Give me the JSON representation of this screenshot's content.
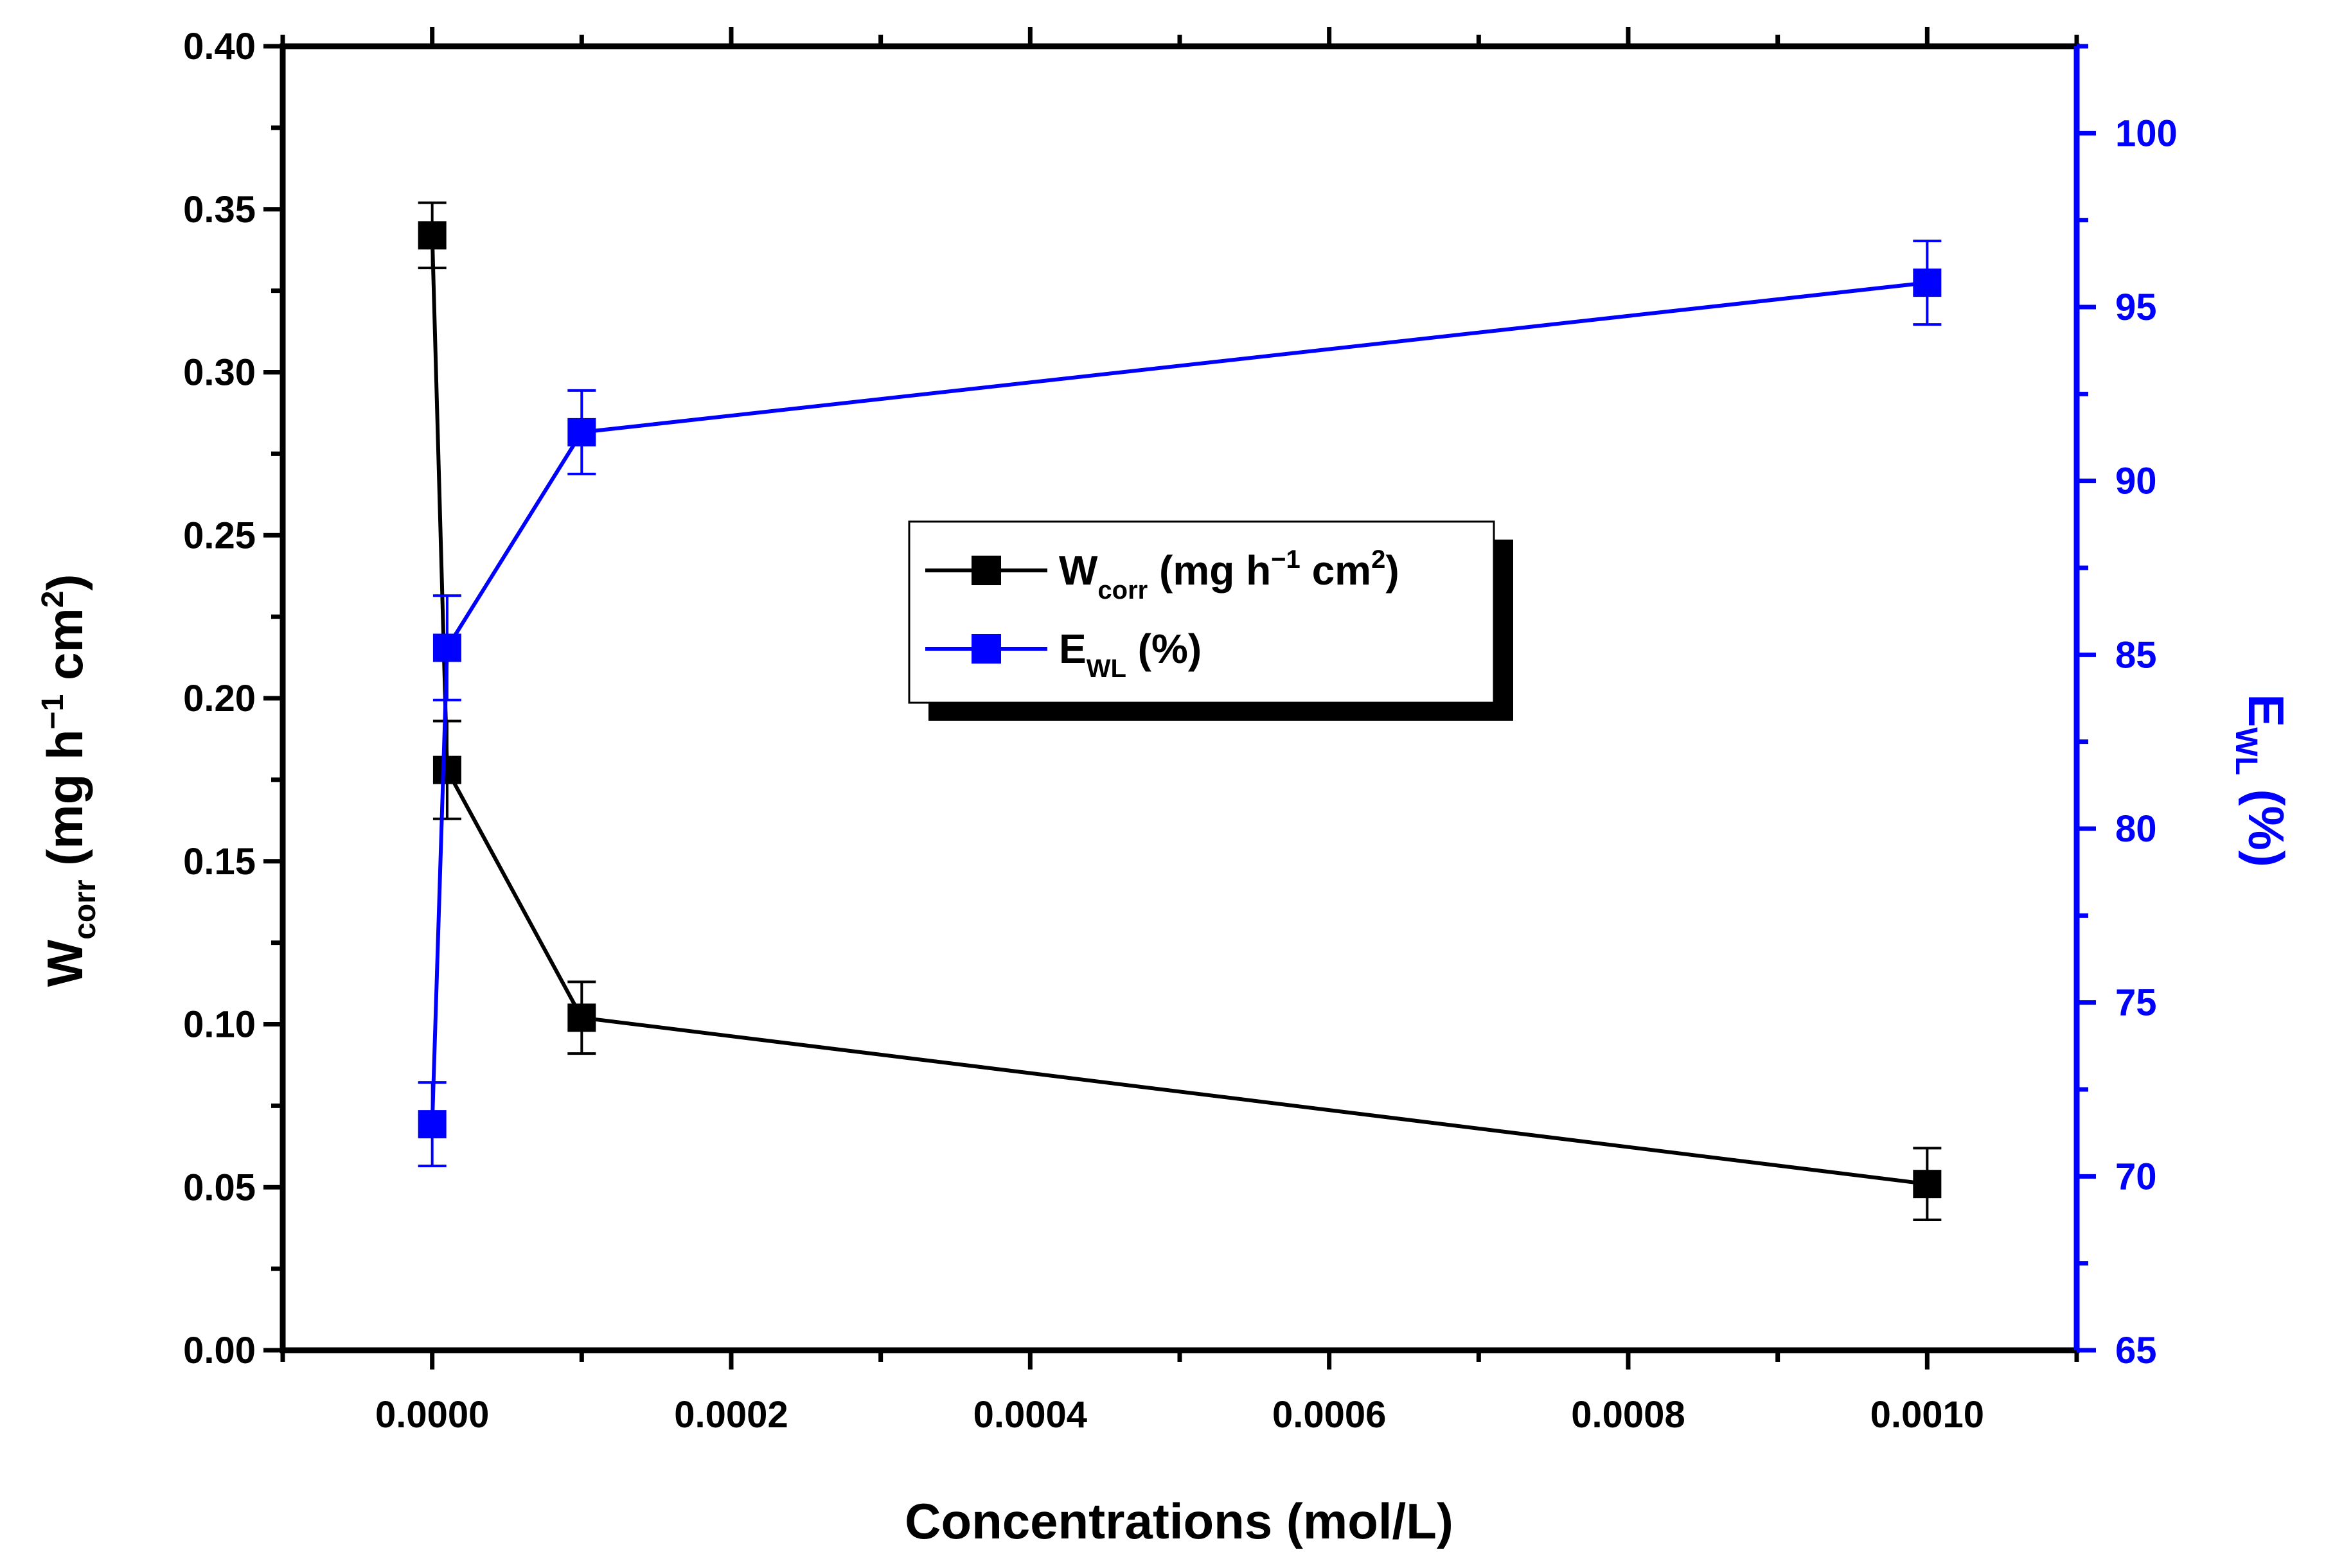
{
  "chart_data": {
    "type": "line",
    "title": "",
    "xlabel": "Concentrations  (mol/L)",
    "ylabel_left": {
      "main": "W",
      "sub": "corr",
      "rest_a": " (mg h",
      "sup1": "−1",
      "rest_b": " cm",
      "sup2": "2",
      "rest_c": ")"
    },
    "ylabel_right": {
      "main": "E",
      "sub": "WL",
      "rest": " (%)"
    },
    "xlim": [
      -0.0001,
      0.0011
    ],
    "ylim_left": [
      0.0,
      0.4
    ],
    "ylim_right": [
      65,
      102.5
    ],
    "x_ticks": [
      "0.0000",
      "0.0002",
      "0.0004",
      "0.0006",
      "0.0008",
      "0.0010"
    ],
    "y_left_ticks": [
      "0.00",
      "0.05",
      "0.10",
      "0.15",
      "0.20",
      "0.25",
      "0.30",
      "0.35",
      "0.40"
    ],
    "y_right_ticks": [
      "65",
      "70",
      "75",
      "80",
      "85",
      "90",
      "95",
      "100"
    ],
    "series": [
      {
        "name": "W_corr (mg h−1 cm2)",
        "axis": "left",
        "color": "#000000",
        "x": [
          0.0,
          1e-05,
          0.0001,
          0.001
        ],
        "y": [
          0.342,
          0.178,
          0.102,
          0.051
        ],
        "err": [
          0.01,
          0.015,
          0.011,
          0.011
        ]
      },
      {
        "name": "E_WL (%)",
        "axis": "right",
        "color": "#0000ff",
        "x": [
          0.0,
          1e-05,
          0.0001,
          0.001
        ],
        "y": [
          71.5,
          85.2,
          91.4,
          95.7
        ],
        "err": [
          1.2,
          1.5,
          1.2,
          1.2
        ]
      }
    ],
    "legend": {
      "position": "center",
      "items": [
        {
          "main": "W",
          "sub": "corr",
          "rest_a": " (mg h",
          "sup1": "−1",
          "rest_b": " cm",
          "sup2": "2",
          "rest_c": ")",
          "color": "#000000"
        },
        {
          "main": "E",
          "sub": "WL",
          "rest_a": " (%)",
          "color": "#0000ff"
        }
      ]
    },
    "colors": {
      "left_axis": "#000000",
      "right_axis": "#0000ff"
    }
  }
}
